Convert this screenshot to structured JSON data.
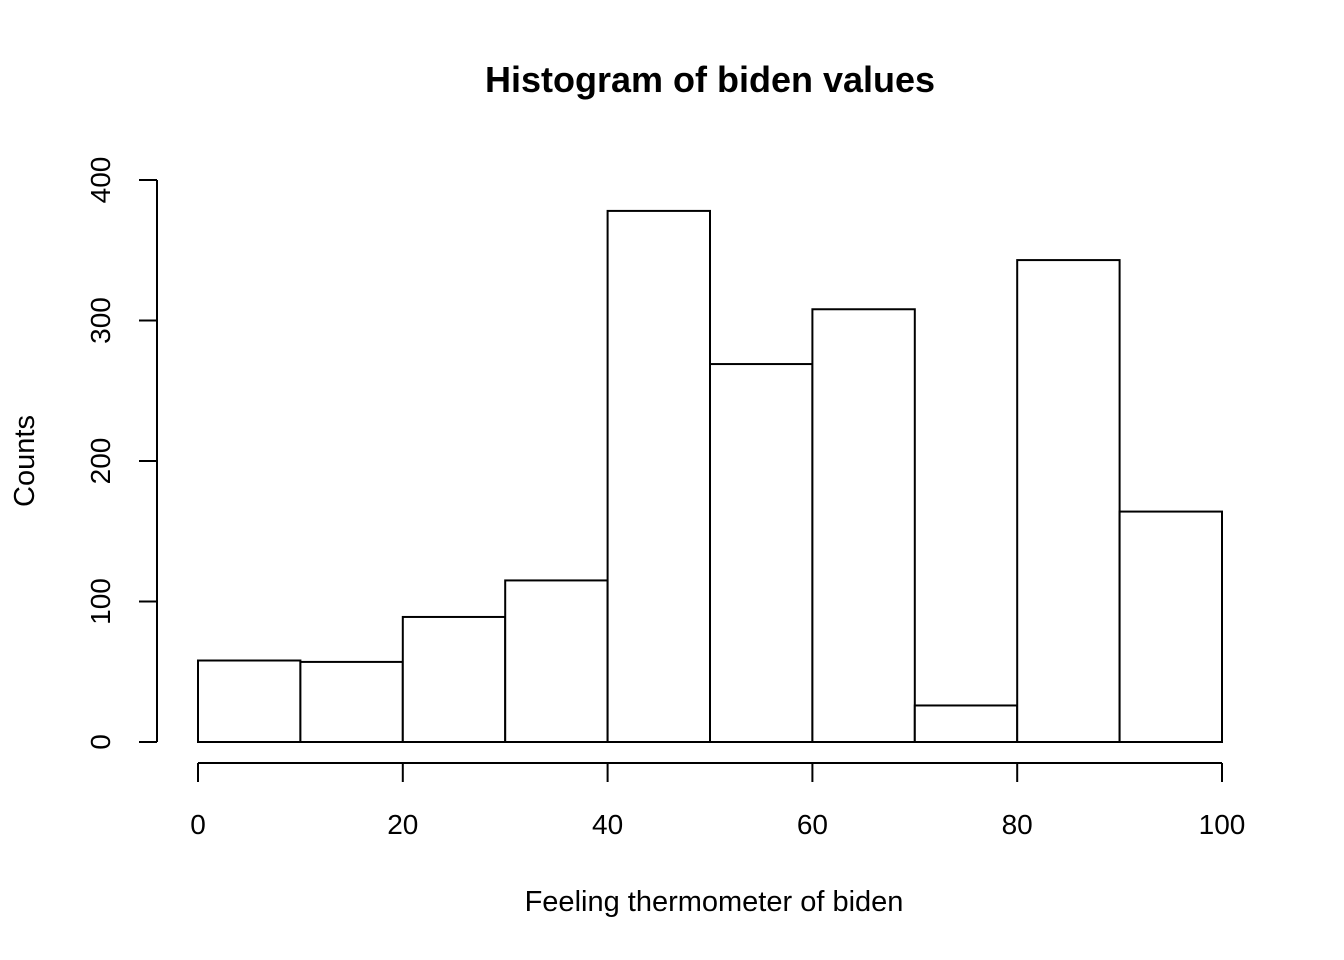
{
  "chart_data": {
    "type": "bar",
    "title": "Histogram of biden values",
    "xlabel": "Feeling thermometer of biden",
    "ylabel": "Counts",
    "bins": [
      {
        "start": 0,
        "end": 10,
        "count": 58
      },
      {
        "start": 10,
        "end": 20,
        "count": 57
      },
      {
        "start": 20,
        "end": 30,
        "count": 89
      },
      {
        "start": 30,
        "end": 40,
        "count": 115
      },
      {
        "start": 40,
        "end": 50,
        "count": 378
      },
      {
        "start": 50,
        "end": 60,
        "count": 269
      },
      {
        "start": 60,
        "end": 70,
        "count": 308
      },
      {
        "start": 70,
        "end": 80,
        "count": 26
      },
      {
        "start": 80,
        "end": 90,
        "count": 343
      },
      {
        "start": 90,
        "end": 100,
        "count": 164
      }
    ],
    "xlim": [
      0,
      100
    ],
    "ylim": [
      0,
      400
    ],
    "x_ticks": [
      "0",
      "20",
      "40",
      "60",
      "80",
      "100"
    ],
    "y_ticks": [
      "0",
      "100",
      "200",
      "300",
      "400"
    ],
    "grid": false,
    "bar_fill": "#ffffff",
    "bar_stroke": "#000000"
  }
}
